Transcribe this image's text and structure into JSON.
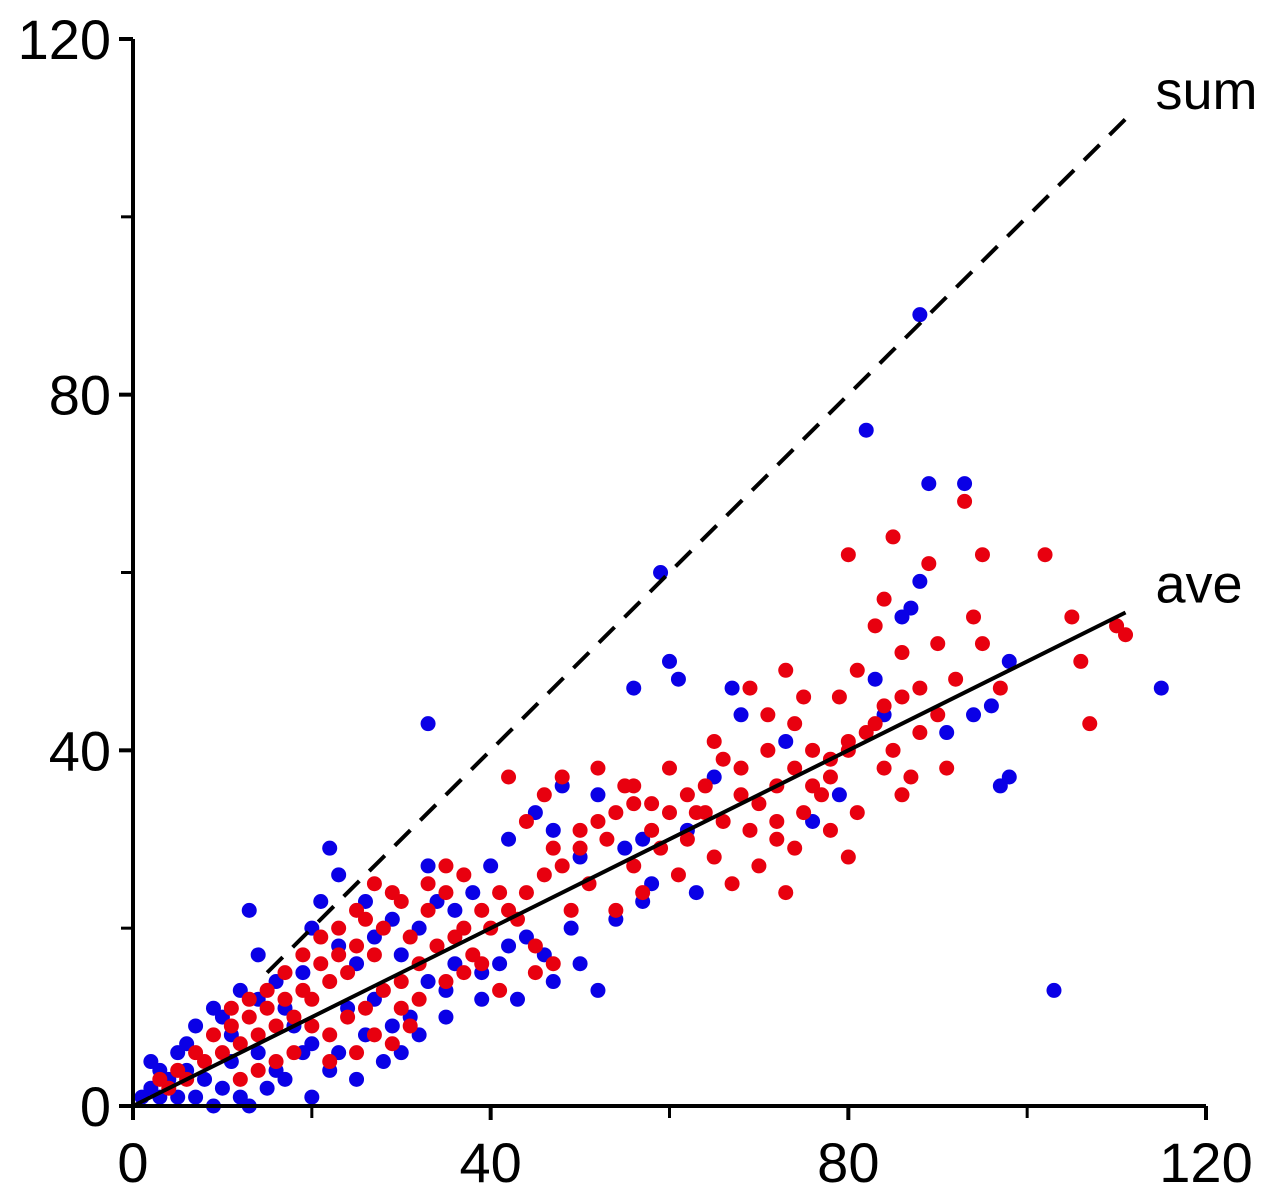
{
  "chart_data": {
    "type": "scatter",
    "title": "",
    "xlabel": "",
    "ylabel": "",
    "xlim": [
      0,
      120
    ],
    "ylim": [
      0,
      120
    ],
    "x_ticks_major": [
      0,
      40,
      80,
      120
    ],
    "x_ticks_minor": [
      20,
      60,
      100
    ],
    "y_ticks_major": [
      0,
      40,
      80,
      120
    ],
    "y_ticks_minor": [
      20,
      60,
      100
    ],
    "grid": false,
    "legend": "none",
    "colors": {
      "blue": "#0a00e6",
      "red": "#e8000f",
      "axis": "#000000"
    },
    "reference_lines": [
      {
        "name": "sum",
        "style": "dashed",
        "x": [
          15,
          111
        ],
        "y": [
          15,
          111
        ]
      },
      {
        "name": "ave",
        "style": "solid",
        "x": [
          0,
          111
        ],
        "y": [
          0,
          55.5
        ]
      }
    ],
    "series": [
      {
        "color": "#0a00e6",
        "points": [
          [
            88,
            89
          ],
          [
            82,
            76
          ],
          [
            89,
            70
          ],
          [
            93,
            70
          ],
          [
            59,
            60
          ],
          [
            60,
            50
          ],
          [
            61,
            48
          ],
          [
            33,
            43
          ],
          [
            56,
            47
          ],
          [
            67,
            47
          ],
          [
            83,
            48
          ],
          [
            86,
            55
          ],
          [
            87,
            56
          ],
          [
            88,
            59
          ],
          [
            98,
            50
          ],
          [
            115,
            47
          ],
          [
            96,
            45
          ],
          [
            97,
            36
          ],
          [
            98,
            37
          ],
          [
            103,
            13
          ],
          [
            76,
            32
          ],
          [
            62,
            31
          ],
          [
            55,
            29
          ],
          [
            42,
            30
          ],
          [
            47,
            31
          ],
          [
            50,
            28
          ],
          [
            40,
            27
          ],
          [
            38,
            24
          ],
          [
            33,
            27
          ],
          [
            22,
            29
          ],
          [
            23,
            26
          ],
          [
            26,
            23
          ],
          [
            21,
            23
          ],
          [
            13,
            22
          ],
          [
            14,
            17
          ],
          [
            20,
            20
          ],
          [
            45,
            33
          ],
          [
            48,
            36
          ],
          [
            52,
            35
          ],
          [
            57,
            30
          ],
          [
            63,
            24
          ],
          [
            57,
            23
          ],
          [
            42,
            18
          ],
          [
            39,
            15
          ],
          [
            43,
            12
          ],
          [
            47,
            14
          ],
          [
            50,
            16
          ],
          [
            52,
            13
          ],
          [
            35,
            13
          ],
          [
            31,
            10
          ],
          [
            27,
            12
          ],
          [
            24,
            11
          ],
          [
            20,
            7
          ],
          [
            18,
            9
          ],
          [
            22,
            4
          ],
          [
            17,
            3
          ],
          [
            15,
            2
          ],
          [
            12,
            1
          ],
          [
            10,
            2
          ],
          [
            8,
            3
          ],
          [
            6,
            4
          ],
          [
            5,
            6
          ],
          [
            4,
            3
          ],
          [
            3,
            1
          ],
          [
            2,
            2
          ],
          [
            1,
            1
          ],
          [
            2,
            5
          ],
          [
            3,
            4
          ],
          [
            6,
            7
          ],
          [
            7,
            9
          ],
          [
            9,
            11
          ],
          [
            10,
            10
          ],
          [
            11,
            8
          ],
          [
            12,
            13
          ],
          [
            14,
            12
          ],
          [
            16,
            14
          ],
          [
            17,
            11
          ],
          [
            19,
            15
          ],
          [
            23,
            18
          ],
          [
            25,
            16
          ],
          [
            27,
            19
          ],
          [
            29,
            21
          ],
          [
            30,
            17
          ],
          [
            32,
            20
          ],
          [
            34,
            23
          ],
          [
            36,
            22
          ],
          [
            11,
            5
          ],
          [
            14,
            6
          ],
          [
            16,
            4
          ],
          [
            19,
            6
          ],
          [
            23,
            6
          ],
          [
            26,
            8
          ],
          [
            29,
            9
          ],
          [
            32,
            8
          ],
          [
            35,
            10
          ],
          [
            39,
            12
          ],
          [
            41,
            16
          ],
          [
            44,
            19
          ],
          [
            46,
            17
          ],
          [
            49,
            20
          ],
          [
            54,
            21
          ],
          [
            58,
            25
          ],
          [
            65,
            37
          ],
          [
            68,
            44
          ],
          [
            73,
            41
          ],
          [
            79,
            35
          ],
          [
            84,
            44
          ],
          [
            91,
            42
          ],
          [
            94,
            44
          ],
          [
            5,
            1
          ],
          [
            7,
            1
          ],
          [
            9,
            0
          ],
          [
            13,
            0
          ],
          [
            20,
            1
          ],
          [
            25,
            3
          ],
          [
            28,
            5
          ],
          [
            30,
            6
          ],
          [
            33,
            14
          ],
          [
            36,
            16
          ]
        ]
      },
      {
        "color": "#e8000f",
        "points": [
          [
            93,
            68
          ],
          [
            80,
            62
          ],
          [
            85,
            64
          ],
          [
            89,
            61
          ],
          [
            95,
            62
          ],
          [
            102,
            62
          ],
          [
            105,
            55
          ],
          [
            111,
            53
          ],
          [
            106,
            50
          ],
          [
            107,
            43
          ],
          [
            94,
            55
          ],
          [
            95,
            52
          ],
          [
            90,
            52
          ],
          [
            84,
            57
          ],
          [
            83,
            54
          ],
          [
            86,
            51
          ],
          [
            92,
            48
          ],
          [
            97,
            47
          ],
          [
            90,
            44
          ],
          [
            88,
            47
          ],
          [
            81,
            49
          ],
          [
            79,
            46
          ],
          [
            83,
            43
          ],
          [
            80,
            40
          ],
          [
            84,
            38
          ],
          [
            86,
            35
          ],
          [
            78,
            37
          ],
          [
            76,
            40
          ],
          [
            74,
            43
          ],
          [
            73,
            49
          ],
          [
            69,
            47
          ],
          [
            71,
            40
          ],
          [
            66,
            39
          ],
          [
            64,
            36
          ],
          [
            60,
            38
          ],
          [
            58,
            34
          ],
          [
            56,
            36
          ],
          [
            52,
            38
          ],
          [
            48,
            37
          ],
          [
            46,
            35
          ],
          [
            44,
            32
          ],
          [
            50,
            31
          ],
          [
            53,
            30
          ],
          [
            56,
            27
          ],
          [
            59,
            29
          ],
          [
            62,
            30
          ],
          [
            65,
            28
          ],
          [
            67,
            25
          ],
          [
            70,
            27
          ],
          [
            72,
            30
          ],
          [
            75,
            33
          ],
          [
            78,
            31
          ],
          [
            80,
            28
          ],
          [
            73,
            24
          ],
          [
            69,
            31
          ],
          [
            63,
            33
          ],
          [
            61,
            26
          ],
          [
            57,
            24
          ],
          [
            54,
            22
          ],
          [
            51,
            25
          ],
          [
            49,
            22
          ],
          [
            47,
            16
          ],
          [
            45,
            18
          ],
          [
            43,
            21
          ],
          [
            41,
            24
          ],
          [
            39,
            22
          ],
          [
            37,
            20
          ],
          [
            35,
            24
          ],
          [
            33,
            22
          ],
          [
            31,
            19
          ],
          [
            30,
            23
          ],
          [
            28,
            20
          ],
          [
            27,
            17
          ],
          [
            26,
            21
          ],
          [
            25,
            18
          ],
          [
            24,
            15
          ],
          [
            23,
            17
          ],
          [
            22,
            14
          ],
          [
            21,
            16
          ],
          [
            20,
            12
          ],
          [
            19,
            13
          ],
          [
            18,
            10
          ],
          [
            17,
            12
          ],
          [
            16,
            9
          ],
          [
            15,
            11
          ],
          [
            14,
            8
          ],
          [
            13,
            10
          ],
          [
            12,
            7
          ],
          [
            11,
            9
          ],
          [
            10,
            6
          ],
          [
            9,
            8
          ],
          [
            8,
            5
          ],
          [
            7,
            6
          ],
          [
            6,
            3
          ],
          [
            5,
            4
          ],
          [
            4,
            2
          ],
          [
            3,
            3
          ],
          [
            30,
            14
          ],
          [
            32,
            16
          ],
          [
            34,
            18
          ],
          [
            36,
            19
          ],
          [
            38,
            17
          ],
          [
            40,
            20
          ],
          [
            42,
            22
          ],
          [
            44,
            24
          ],
          [
            46,
            26
          ],
          [
            48,
            27
          ],
          [
            50,
            29
          ],
          [
            52,
            32
          ],
          [
            54,
            33
          ],
          [
            56,
            34
          ],
          [
            58,
            31
          ],
          [
            60,
            33
          ],
          [
            62,
            35
          ],
          [
            64,
            33
          ],
          [
            66,
            32
          ],
          [
            68,
            35
          ],
          [
            70,
            34
          ],
          [
            72,
            36
          ],
          [
            74,
            38
          ],
          [
            76,
            36
          ],
          [
            78,
            39
          ],
          [
            80,
            41
          ],
          [
            82,
            42
          ],
          [
            84,
            45
          ],
          [
            86,
            46
          ],
          [
            88,
            42
          ],
          [
            91,
            38
          ],
          [
            29,
            24
          ],
          [
            27,
            25
          ],
          [
            25,
            22
          ],
          [
            23,
            20
          ],
          [
            21,
            19
          ],
          [
            19,
            17
          ],
          [
            17,
            15
          ],
          [
            15,
            13
          ],
          [
            13,
            12
          ],
          [
            11,
            11
          ],
          [
            20,
            9
          ],
          [
            22,
            8
          ],
          [
            24,
            10
          ],
          [
            26,
            11
          ],
          [
            28,
            13
          ],
          [
            30,
            11
          ],
          [
            32,
            12
          ],
          [
            35,
            14
          ],
          [
            37,
            15
          ],
          [
            39,
            16
          ],
          [
            18,
            6
          ],
          [
            16,
            5
          ],
          [
            14,
            4
          ],
          [
            12,
            3
          ],
          [
            22,
            5
          ],
          [
            25,
            6
          ],
          [
            27,
            8
          ],
          [
            29,
            7
          ],
          [
            31,
            9
          ],
          [
            41,
            13
          ],
          [
            45,
            15
          ],
          [
            35,
            27
          ],
          [
            33,
            25
          ],
          [
            37,
            26
          ],
          [
            42,
            37
          ],
          [
            47,
            29
          ],
          [
            55,
            36
          ],
          [
            65,
            41
          ],
          [
            68,
            38
          ],
          [
            71,
            44
          ],
          [
            75,
            46
          ],
          [
            77,
            35
          ],
          [
            81,
            33
          ],
          [
            85,
            40
          ],
          [
            87,
            37
          ],
          [
            74,
            29
          ],
          [
            72,
            32
          ],
          [
            110,
            54
          ]
        ]
      }
    ]
  }
}
